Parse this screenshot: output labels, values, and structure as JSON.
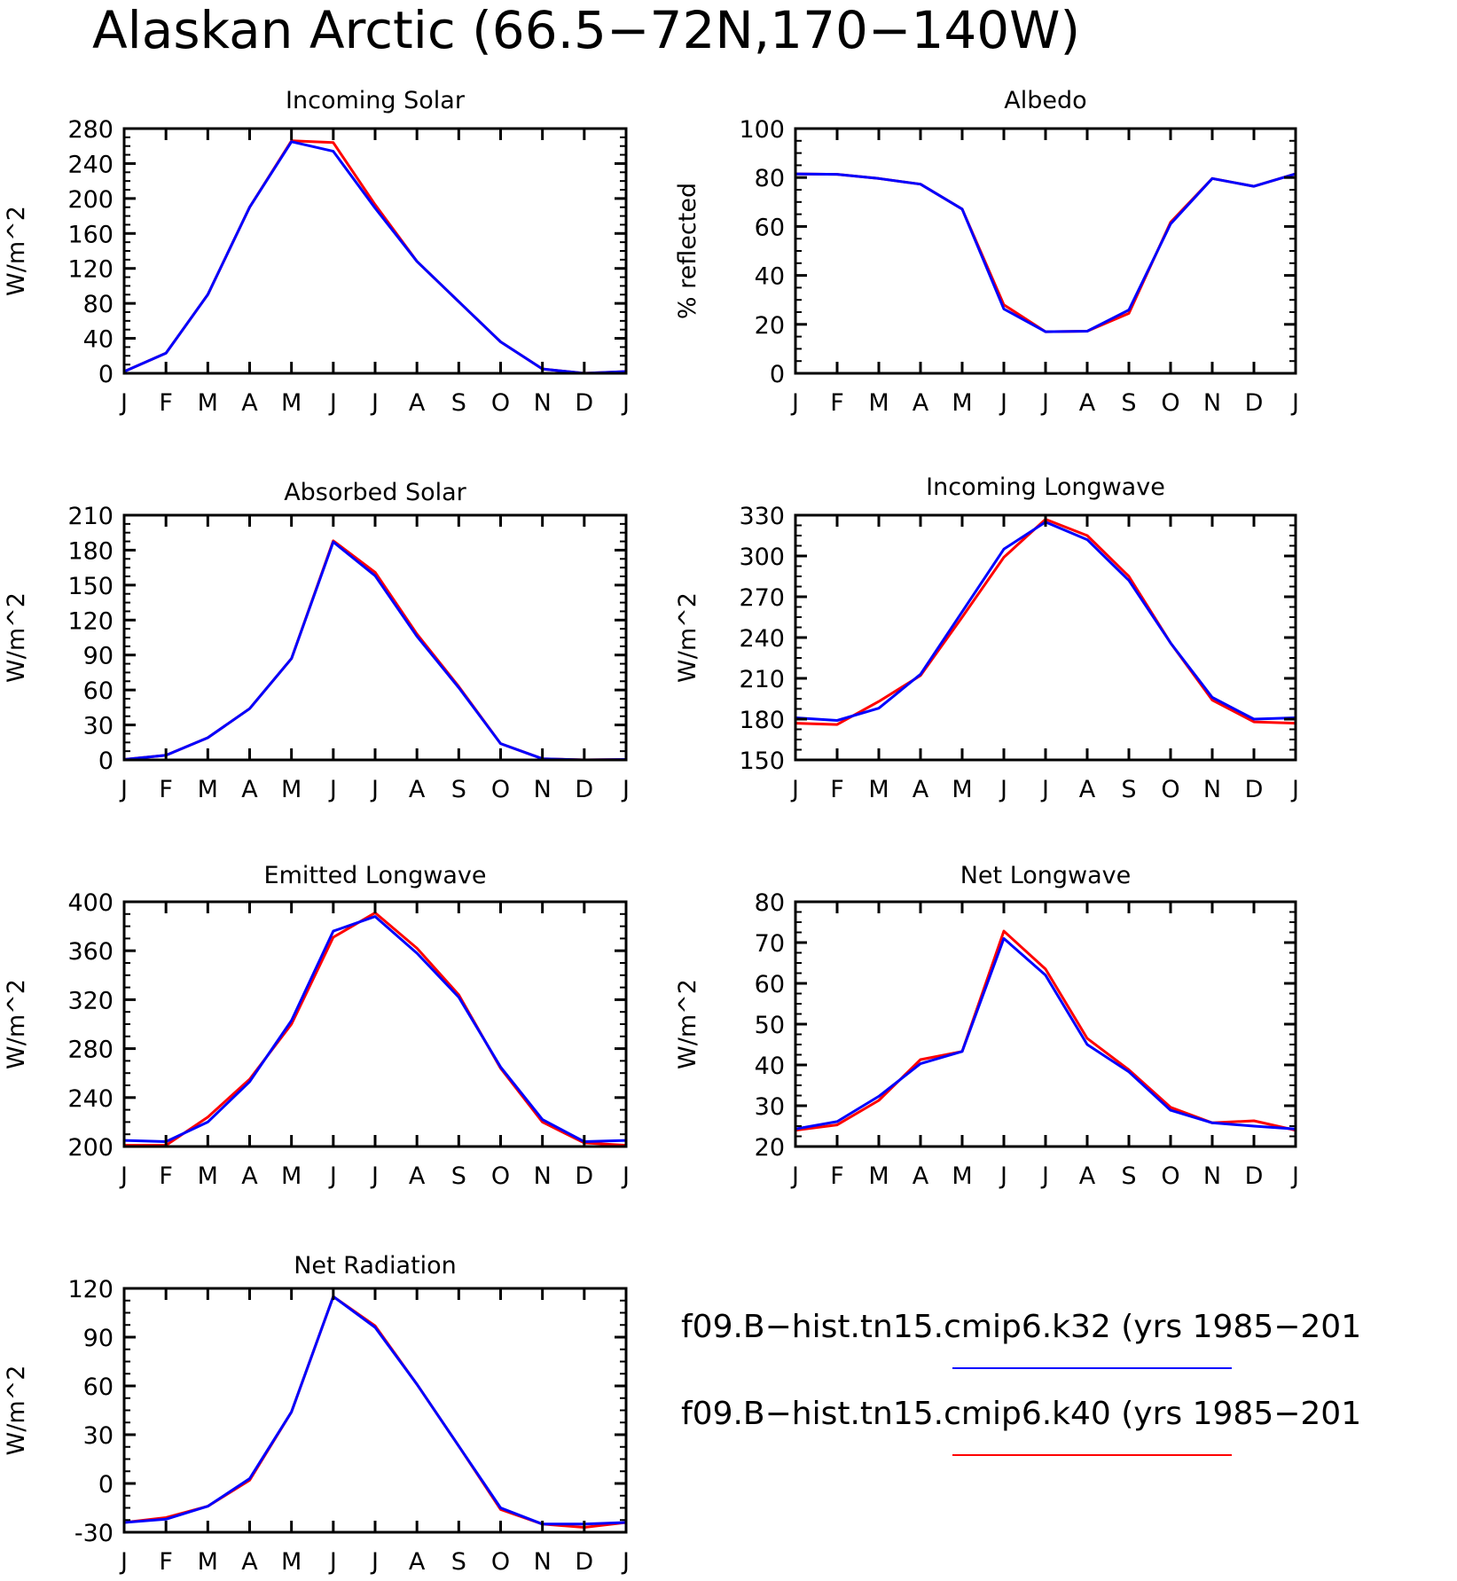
{
  "figure": {
    "title": "Alaskan Arctic (66.5−72N,170−140W)"
  },
  "legend": [
    {
      "label": "f09.B−hist.tn15.cmip6.k32 (yrs 1985−201",
      "color": "#0000ff"
    },
    {
      "label": "f09.B−hist.tn15.cmip6.k40 (yrs 1985−201",
      "color": "#ff0000"
    }
  ],
  "chart_data": [
    {
      "type": "line",
      "title": "Incoming Solar",
      "ylabel": "W/m^2",
      "categories": [
        "J",
        "F",
        "M",
        "A",
        "M",
        "J",
        "J",
        "A",
        "S",
        "O",
        "N",
        "D",
        "J"
      ],
      "ylim": [
        0,
        280
      ],
      "yticks": [
        0,
        40,
        80,
        120,
        160,
        200,
        240,
        280
      ],
      "series": [
        {
          "name": "f09.B−hist.tn15.cmip6.k40",
          "color": "#ff0000",
          "values": [
            2,
            23,
            90,
            190,
            266,
            264,
            193,
            128,
            82,
            36,
            5,
            0,
            2
          ]
        },
        {
          "name": "f09.B−hist.tn15.cmip6.k32",
          "color": "#0000ff",
          "values": [
            2,
            23,
            90,
            190,
            265,
            254,
            189,
            128,
            82,
            36,
            5,
            0,
            2
          ]
        }
      ]
    },
    {
      "type": "line",
      "title": "Albedo",
      "ylabel": "% reflected",
      "categories": [
        "J",
        "F",
        "M",
        "A",
        "M",
        "J",
        "J",
        "A",
        "S",
        "O",
        "N",
        "D",
        "J"
      ],
      "ylim": [
        0,
        100
      ],
      "yticks": [
        0,
        20,
        40,
        60,
        80,
        100
      ],
      "series": [
        {
          "name": "f09.B−hist.tn15.cmip6.k40",
          "color": "#ff0000",
          "values": [
            81.5,
            81.3,
            79.6,
            77.3,
            67.1,
            28,
            17,
            17.2,
            24.5,
            61.7,
            79.6,
            76.4,
            81.5
          ]
        },
        {
          "name": "f09.B−hist.tn15.cmip6.k32",
          "color": "#0000ff",
          "values": [
            81.5,
            81.3,
            79.6,
            77.3,
            67.1,
            26.3,
            17,
            17.2,
            25.9,
            61,
            79.6,
            76.4,
            81.5
          ]
        }
      ]
    },
    {
      "type": "line",
      "title": "Absorbed Solar",
      "ylabel": "W/m^2",
      "categories": [
        "J",
        "F",
        "M",
        "A",
        "M",
        "J",
        "J",
        "A",
        "S",
        "O",
        "N",
        "D",
        "J"
      ],
      "ylim": [
        0,
        210
      ],
      "yticks": [
        0,
        30,
        60,
        90,
        120,
        150,
        180,
        210
      ],
      "series": [
        {
          "name": "f09.B−hist.tn15.cmip6.k40",
          "color": "#ff0000",
          "values": [
            0.4,
            4,
            19,
            44,
            87,
            188,
            161,
            108,
            63,
            14,
            1,
            0,
            0.4
          ]
        },
        {
          "name": "f09.B−hist.tn15.cmip6.k32",
          "color": "#0000ff",
          "values": [
            0.4,
            4,
            19,
            44,
            87,
            187,
            158,
            106,
            62,
            14,
            1,
            0,
            0.4
          ]
        }
      ]
    },
    {
      "type": "line",
      "title": "Incoming Longwave",
      "ylabel": "W/m^2",
      "categories": [
        "J",
        "F",
        "M",
        "A",
        "M",
        "J",
        "J",
        "A",
        "S",
        "O",
        "N",
        "D",
        "J"
      ],
      "ylim": [
        150,
        330
      ],
      "yticks": [
        150,
        180,
        210,
        240,
        270,
        300,
        330
      ],
      "series": [
        {
          "name": "f09.B−hist.tn15.cmip6.k40",
          "color": "#ff0000",
          "values": [
            177,
            176,
            193,
            212,
            255,
            299,
            327,
            315,
            285,
            236,
            194,
            178,
            177
          ]
        },
        {
          "name": "f09.B−hist.tn15.cmip6.k32",
          "color": "#0000ff",
          "values": [
            181,
            179,
            188,
            213,
            259,
            305,
            325,
            312,
            282,
            236,
            196,
            180,
            181
          ]
        }
      ]
    },
    {
      "type": "line",
      "title": "Emitted Longwave",
      "ylabel": "W/m^2",
      "categories": [
        "J",
        "F",
        "M",
        "A",
        "M",
        "J",
        "J",
        "A",
        "S",
        "O",
        "N",
        "D",
        "J"
      ],
      "ylim": [
        200,
        400
      ],
      "yticks": [
        200,
        240,
        280,
        320,
        360,
        400
      ],
      "series": [
        {
          "name": "f09.B−hist.tn15.cmip6.k40",
          "color": "#ff0000",
          "values": [
            201,
            201,
            224,
            255,
            300,
            371,
            391,
            362,
            324,
            264,
            220,
            203,
            201
          ]
        },
        {
          "name": "f09.B−hist.tn15.cmip6.k32",
          "color": "#0000ff",
          "values": [
            205,
            204,
            220,
            253,
            303,
            376,
            388,
            358,
            322,
            265,
            222,
            204,
            205
          ]
        }
      ]
    },
    {
      "type": "line",
      "title": "Net Longwave",
      "ylabel": "W/m^2",
      "categories": [
        "J",
        "F",
        "M",
        "A",
        "M",
        "J",
        "J",
        "A",
        "S",
        "O",
        "N",
        "D",
        "J"
      ],
      "ylim": [
        20,
        80
      ],
      "yticks": [
        20,
        30,
        40,
        50,
        60,
        70,
        80
      ],
      "series": [
        {
          "name": "f09.B−hist.tn15.cmip6.k40",
          "color": "#ff0000",
          "values": [
            24,
            25.3,
            31.3,
            41.3,
            43.3,
            72.8,
            63.5,
            46.5,
            38.8,
            29.6,
            25.8,
            26.3,
            24
          ]
        },
        {
          "name": "f09.B−hist.tn15.cmip6.k32",
          "color": "#0000ff",
          "values": [
            24.3,
            26.1,
            32.3,
            40.3,
            43.3,
            71,
            62,
            45,
            38.3,
            28.9,
            25.8,
            25,
            24.3
          ]
        }
      ]
    },
    {
      "type": "line",
      "title": "Net Radiation",
      "ylabel": "W/m^2",
      "categories": [
        "J",
        "F",
        "M",
        "A",
        "M",
        "J",
        "J",
        "A",
        "S",
        "O",
        "N",
        "D",
        "J"
      ],
      "ylim": [
        -30,
        120
      ],
      "yticks": [
        -30,
        0,
        30,
        60,
        90,
        120
      ],
      "series": [
        {
          "name": "f09.B−hist.tn15.cmip6.k40",
          "color": "#ff0000",
          "values": [
            -24,
            -21,
            -14,
            2,
            44,
            115,
            97,
            61,
            23,
            -16,
            -25,
            -27,
            -24
          ]
        },
        {
          "name": "f09.B−hist.tn15.cmip6.k32",
          "color": "#0000ff",
          "values": [
            -24,
            -22,
            -14,
            3,
            44,
            115,
            96,
            61,
            23,
            -15,
            -25,
            -25,
            -24
          ]
        }
      ]
    }
  ]
}
